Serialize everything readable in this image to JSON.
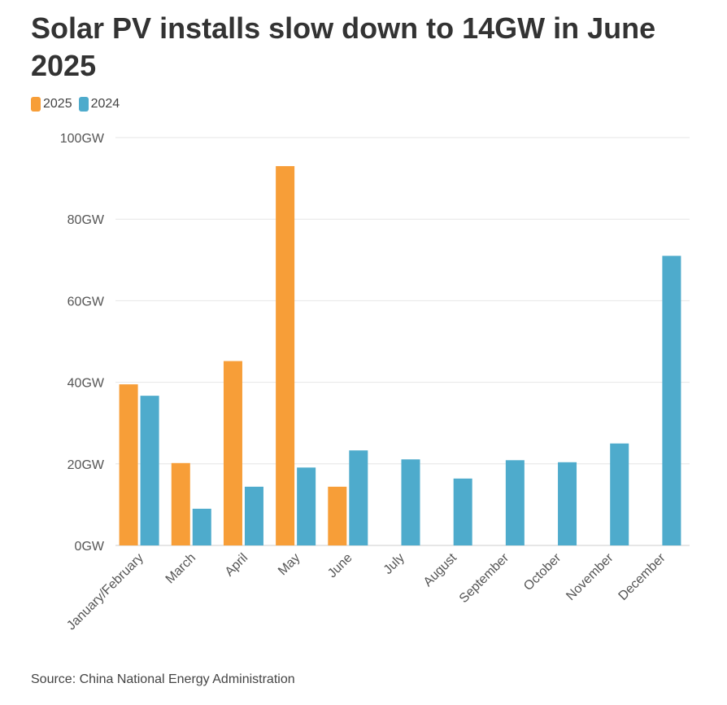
{
  "chart_data": {
    "type": "bar",
    "title": "Solar PV installs slow down to 14GW in June 2025",
    "xlabel": "",
    "ylabel": "",
    "ylim": [
      0,
      100
    ],
    "y_ticks": [
      {
        "value": 0,
        "label": "0GW"
      },
      {
        "value": 20,
        "label": "20GW"
      },
      {
        "value": 40,
        "label": "40GW"
      },
      {
        "value": 60,
        "label": "60GW"
      },
      {
        "value": 80,
        "label": "80GW"
      },
      {
        "value": 100,
        "label": "100GW"
      }
    ],
    "categories": [
      "January/February",
      "March",
      "April",
      "May",
      "June",
      "July",
      "August",
      "September",
      "October",
      "November",
      "December"
    ],
    "series": [
      {
        "name": "2025",
        "color": "#f79e38",
        "values": [
          39.5,
          20.2,
          45.2,
          93,
          14.4,
          null,
          null,
          null,
          null,
          null,
          null
        ]
      },
      {
        "name": "2024",
        "color": "#4eabcc",
        "values": [
          36.7,
          9,
          14.4,
          19.1,
          23.3,
          21.1,
          16.4,
          20.9,
          20.4,
          25,
          71
        ]
      }
    ],
    "legend_position": "top-left",
    "grid": true
  },
  "source": "Source: China National Energy Administration"
}
